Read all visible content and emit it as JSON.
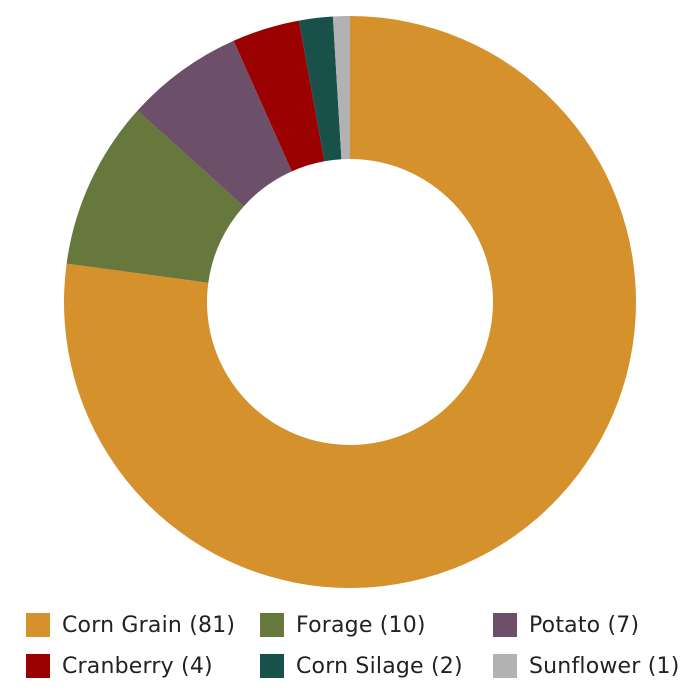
{
  "chart_data": {
    "type": "pie",
    "variant": "donut",
    "title": "",
    "categories": [
      "Corn Grain",
      "Forage",
      "Potato",
      "Cranberry",
      "Corn Silage",
      "Sunflower"
    ],
    "values": [
      81,
      10,
      7,
      4,
      2,
      1
    ],
    "colors": [
      "#d4912c",
      "#66783c",
      "#6e4f69",
      "#9b0000",
      "#18504a",
      "#b2b2b2"
    ],
    "legend": {
      "position": "bottom",
      "labels": [
        "Corn Grain (81)",
        "Forage (10)",
        "Potato (7)",
        "Cranberry (4)",
        "Corn Silage (2)",
        "Sunflower (1)"
      ]
    }
  }
}
